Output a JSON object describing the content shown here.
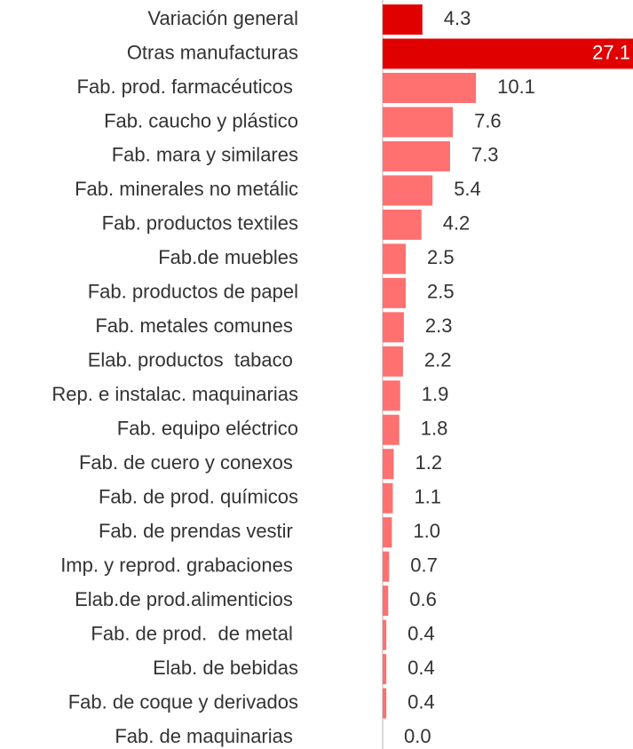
{
  "chart_data": {
    "type": "hbar",
    "categories": [
      "Variación general",
      "Otras manufacturas",
      "Fab. prod. farmacéuticos ",
      "Fab. caucho y plástico",
      "Fab. mara y similares",
      "Fab. minerales no metálic",
      "Fab. productos textiles",
      "Fab.de muebles",
      "Fab. productos de papel",
      "Fab. metales comunes ",
      "Elab. productos  tabaco ",
      "Rep. e instalac. maquinarias",
      "Fab. equipo eléctrico",
      "Fab. de cuero y conexos ",
      "Fab. de prod. químicos",
      "Fab. de prendas vestir ",
      "Imp. y reprod. grabaciones ",
      "Elab.de prod.alimenticios ",
      "Fab. de prod.  de metal ",
      "Elab. de bebidas",
      "Fab. de coque y derivados",
      "Fab. de maquinarias "
    ],
    "values": [
      4.3,
      27.1,
      10.1,
      7.6,
      7.3,
      5.4,
      4.2,
      2.5,
      2.5,
      2.3,
      2.2,
      1.9,
      1.8,
      1.2,
      1.1,
      1.0,
      0.7,
      0.6,
      0.4,
      0.4,
      0.4,
      0.0
    ],
    "value_labels": [
      "4.3",
      "27.1",
      "10.1",
      "7.6",
      "7.3",
      "5.4",
      "4.2",
      "2.5",
      "2.5",
      "2.3",
      "2.2",
      "1.9",
      "1.8",
      "1.2",
      "1.1",
      "1.0",
      "0.7",
      "0.6",
      "0.4",
      "0.4",
      "0.4",
      "0.0"
    ],
    "colors": [
      "#e00000",
      "#e00000",
      "#ff7070",
      "#ff7070",
      "#ff7070",
      "#ff7070",
      "#ff7070",
      "#ff7070",
      "#ff7070",
      "#ff7070",
      "#ff7070",
      "#ff7070",
      "#ff7070",
      "#ff7070",
      "#ff7070",
      "#ff7070",
      "#ff7070",
      "#ff7070",
      "#ff7070",
      "#ff7070",
      "#ff7070",
      "#ff7070"
    ]
  }
}
